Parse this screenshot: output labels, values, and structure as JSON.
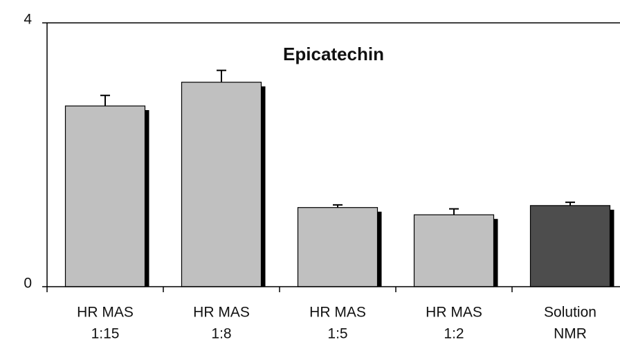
{
  "chart_data": {
    "type": "bar",
    "title": "Epicatechin",
    "categories": [
      [
        "HR MAS",
        "1:15"
      ],
      [
        "HR MAS",
        "1:8"
      ],
      [
        "HR MAS",
        "1:5"
      ],
      [
        "HR MAS",
        "1:2"
      ],
      [
        "Solution",
        "NMR"
      ]
    ],
    "values": [
      2.74,
      3.1,
      1.2,
      1.09,
      1.23
    ],
    "errors": [
      0.16,
      0.18,
      0.04,
      0.09,
      0.05
    ],
    "colors": [
      "#c0c0c0",
      "#c0c0c0",
      "#c0c0c0",
      "#c0c0c0",
      "#4d4d4d"
    ],
    "ylim": [
      0,
      4
    ],
    "yticks": [
      0,
      4
    ],
    "grid": false
  }
}
